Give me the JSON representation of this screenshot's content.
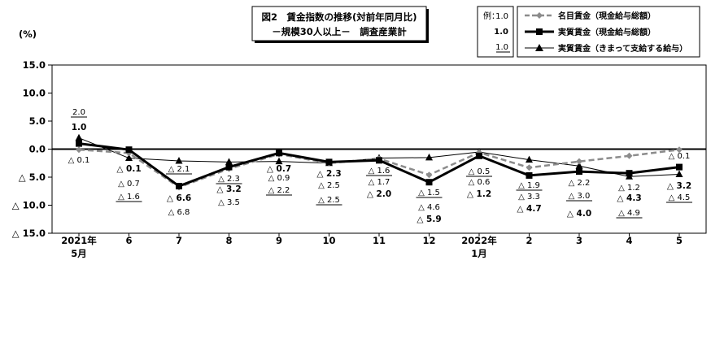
{
  "title_line1": "図2　賃金指数の推移(対前年同月比)",
  "title_line2": "－規模30人以上－　調査産業計",
  "unit_label": "(%)",
  "example_box": {
    "title": "例：",
    "samples": [
      "1.0",
      "1.0",
      "1.0"
    ]
  },
  "colors": {
    "nominal": "#8c8c8c",
    "real": "#000000",
    "scheduled": "#000000"
  },
  "chart_data": {
    "type": "line",
    "title": "図2　賃金指数の推移(対前年同月比)",
    "subtitle": "－規模30人以上－　調査産業計",
    "ylabel": "(%)",
    "xlabel": "",
    "ylim": [
      -15,
      15
    ],
    "y_ticks": [
      {
        "value": 15,
        "label": "15.0"
      },
      {
        "value": 10,
        "label": "10.0"
      },
      {
        "value": 5,
        "label": "5.0"
      },
      {
        "value": 0,
        "label": "0.0"
      },
      {
        "value": -5,
        "label": "△ 5.0"
      },
      {
        "value": -10,
        "label": "△ 10.0"
      },
      {
        "value": -15,
        "label": "△ 15.0"
      }
    ],
    "categories": [
      [
        "2021年",
        "5月"
      ],
      [
        "6"
      ],
      [
        "7"
      ],
      [
        "8"
      ],
      [
        "9"
      ],
      [
        "10"
      ],
      [
        "11"
      ],
      [
        "12"
      ],
      [
        "2022年",
        "1月"
      ],
      [
        "2"
      ],
      [
        "3"
      ],
      [
        "4"
      ],
      [
        "5"
      ]
    ],
    "grid": false,
    "legend_position": "top-right",
    "series": [
      {
        "name": "名目賃金（現金給与総額）",
        "style": "dashed-diamond",
        "values": [
          -0.1,
          -0.7,
          -6.8,
          -3.5,
          -0.9,
          -2.5,
          -1.7,
          -4.6,
          -0.6,
          -3.3,
          -2.2,
          -1.2,
          -0.1
        ],
        "labels": [
          "△ 0.1",
          "△ 0.7",
          "△ 6.8",
          "△ 3.5",
          "△ 0.9",
          "△ 2.5",
          "△ 1.7",
          "△ 4.6",
          "△ 0.6",
          "△ 3.3",
          "△ 2.2",
          "△ 1.2",
          "△ 0.1"
        ]
      },
      {
        "name": "実質賃金（現金給与総額）",
        "style": "bold-square",
        "values": [
          1.0,
          -0.1,
          -6.6,
          -3.2,
          -0.7,
          -2.3,
          -2.0,
          -5.9,
          -1.2,
          -4.7,
          -4.0,
          -4.3,
          -3.2
        ],
        "labels": [
          "1.0",
          "△ 0.1",
          "△ 6.6",
          "△ 3.2",
          "△ 0.7",
          "△ 2.3",
          "△ 2.0",
          "△ 5.9",
          "△ 1.2",
          "△ 4.7",
          "△ 4.0",
          "△ 4.3",
          "△ 3.2"
        ]
      },
      {
        "name": "実質賃金（きまって支給する給与）",
        "style": "thin-triangle",
        "values": [
          2.0,
          -1.6,
          -2.1,
          -2.3,
          -2.2,
          -2.5,
          -1.6,
          -1.5,
          -0.5,
          -1.9,
          -3.0,
          -4.9,
          -4.5
        ],
        "labels": [
          "2.0",
          "△ 1.6",
          "△ 2.1",
          "△ 2.3",
          "△ 2.2",
          "△ 2.5",
          "△ 1.6",
          "△ 1.5",
          "△ 0.5",
          "△ 1.9",
          "△ 3.0",
          "△ 4.9",
          "△ 4.5"
        ]
      }
    ]
  }
}
